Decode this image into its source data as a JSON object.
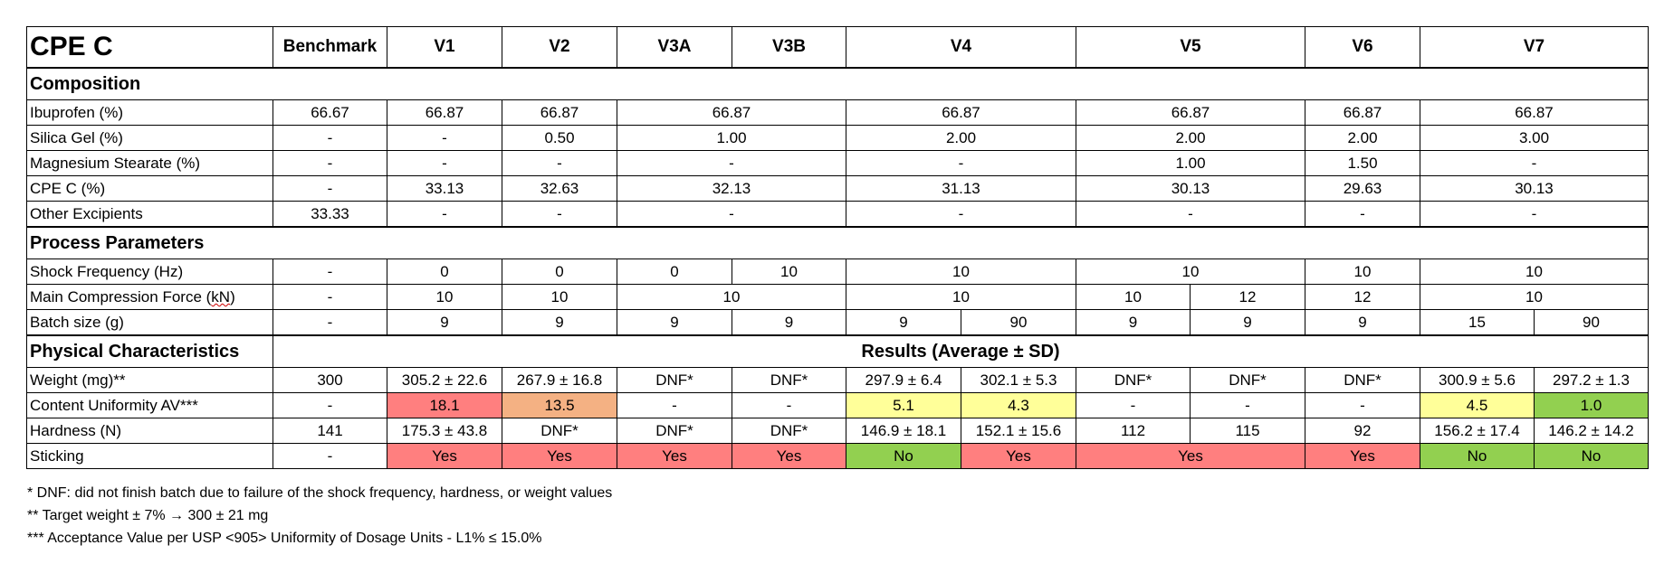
{
  "header": {
    "title": "CPE C",
    "cols": [
      "Benchmark",
      "V1",
      "V2",
      "V3A",
      "V3B",
      "V4",
      "V5",
      "V6",
      "V7"
    ]
  },
  "sections": {
    "composition": "Composition",
    "process": "Process Parameters",
    "physical": "Physical Characteristics",
    "results": "Results (Average ± SD)"
  },
  "composition": {
    "ibuprofen": {
      "label": "Ibuprofen (%)",
      "bench": "66.67",
      "v1": "66.87",
      "v2": "66.87",
      "v3": "66.87",
      "v4": "66.87",
      "v5": "66.87",
      "v6": "66.87",
      "v7": "66.87"
    },
    "silica": {
      "label": "Silica Gel (%)",
      "bench": "-",
      "v1": "-",
      "v2": "0.50",
      "v3": "1.00",
      "v4": "2.00",
      "v5": "2.00",
      "v6": "2.00",
      "v7": "3.00"
    },
    "mgst": {
      "label": "Magnesium Stearate (%)",
      "bench": "-",
      "v1": "-",
      "v2": "-",
      "v3": "-",
      "v4": "-",
      "v5": "1.00",
      "v6": "1.50",
      "v7": "-"
    },
    "cpec": {
      "label": "CPE C (%)",
      "bench": "-",
      "v1": "33.13",
      "v2": "32.63",
      "v3": "32.13",
      "v4": "31.13",
      "v5": "30.13",
      "v6": "29.63",
      "v7": "30.13"
    },
    "other": {
      "label": "Other Excipients",
      "bench": "33.33",
      "v1": "-",
      "v2": "-",
      "v3": "-",
      "v4": "-",
      "v5": "-",
      "v6": "-",
      "v7": "-"
    }
  },
  "process": {
    "shock": {
      "label": "Shock Frequency (Hz)",
      "bench": "-",
      "v1": "0",
      "v2": "0",
      "v3a": "0",
      "v3b": "10",
      "v4": "10",
      "v5": "10",
      "v6": "10",
      "v7": "10"
    },
    "force": {
      "label_pre": "Main Compression Force (",
      "label_kn": "kN",
      "label_post": ")",
      "bench": "-",
      "v1": "10",
      "v2": "10",
      "v3": "10",
      "v4": "10",
      "v5a": "10",
      "v5b": "12",
      "v6": "12",
      "v7": "10"
    },
    "batch": {
      "label": "Batch size (g)",
      "bench": "-",
      "v1": "9",
      "v2": "9",
      "v3a": "9",
      "v3b": "9",
      "v4a": "9",
      "v4b": "90",
      "v5a": "9",
      "v5b": "9",
      "v6": "9",
      "v7a": "15",
      "v7b": "90"
    }
  },
  "physical": {
    "weight": {
      "label": "Weight (mg)**",
      "bench": "300",
      "v1": "305.2 ± 22.6",
      "v2": "267.9 ± 16.8",
      "v3a": "DNF*",
      "v3b": "DNF*",
      "v4a": "297.9 ± 6.4",
      "v4b": "302.1 ± 5.3",
      "v5a": "DNF*",
      "v5b": "DNF*",
      "v6": "DNF*",
      "v7a": "300.9 ± 5.6",
      "v7b": "297.2 ± 1.3"
    },
    "cu": {
      "label": "Content Uniformity AV***",
      "bench": "-",
      "v1": "18.1",
      "v2": "13.5",
      "v3a": "-",
      "v3b": "-",
      "v4a": "5.1",
      "v4b": "4.3",
      "v5a": "-",
      "v5b": "-",
      "v6": "-",
      "v7a": "4.5",
      "v7b": "1.0"
    },
    "hardness": {
      "label": "Hardness (N)",
      "bench": "141",
      "v1": "175.3 ± 43.8",
      "v2": "DNF*",
      "v3a": "DNF*",
      "v3b": "DNF*",
      "v4a": "146.9 ± 18.1",
      "v4b": "152.1 ± 15.6",
      "v5a": "112",
      "v5b": "115",
      "v6": "92",
      "v7a": "156.2 ± 17.4",
      "v7b": "146.2 ± 14.2"
    },
    "sticking": {
      "label": "Sticking",
      "bench": "-",
      "v1": "Yes",
      "v2": "Yes",
      "v3a": "Yes",
      "v3b": "Yes",
      "v4a": "No",
      "v4b": "Yes",
      "v5": "Yes",
      "v6": "Yes",
      "v7a": "No",
      "v7b": "No"
    }
  },
  "notes": [
    "* DNF: did not finish batch due to failure of the shock frequency, hardness, or weight values",
    "** Target weight ± 7% → 300 ± 21 mg",
    "*** Acceptance Value per USP <905> Uniformity of Dosage Units - L1% ≤ 15.0%"
  ],
  "colors": {
    "red": "#ff7f7f",
    "orange": "#f4b183",
    "yellow": "#ffff99",
    "green": "#92d050"
  }
}
